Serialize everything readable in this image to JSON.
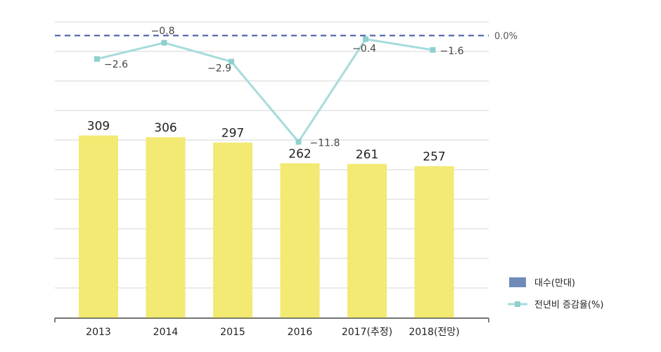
{
  "chart_data": {
    "type": "bar",
    "categories": [
      "2013",
      "2014",
      "2015",
      "2016",
      "2017(추정)",
      "2018(전망)"
    ],
    "series": [
      {
        "name": "대수(만대)",
        "type": "bar",
        "values": [
          309,
          306,
          297,
          262,
          261,
          257
        ],
        "color": "#f2ea72",
        "labels": [
          "309",
          "306",
          "297",
          "262",
          "261",
          "257"
        ]
      },
      {
        "name": "전년비 증감율(%)",
        "type": "line",
        "values": [
          -2.6,
          -0.8,
          -2.9,
          -11.8,
          -0.4,
          -1.6
        ],
        "color": "#a6dcdb",
        "marker_color": "#8fd0cf",
        "labels": [
          "−2.6",
          "−0.8",
          "−2.9",
          "−11.8",
          "−0.4",
          "−1.6"
        ]
      }
    ],
    "reference_line": {
      "value": 0,
      "label": "0.0%",
      "color": "#3f56a3",
      "style": "dashed"
    },
    "legend": {
      "position": "bottom-right",
      "bar_swatch_color": "#6f8cb8"
    },
    "bar_ylim": [
      0,
      500
    ],
    "line_ylim": [
      -14.15,
      1.6
    ],
    "grid": true,
    "grid_color": "#d6d6d6"
  }
}
